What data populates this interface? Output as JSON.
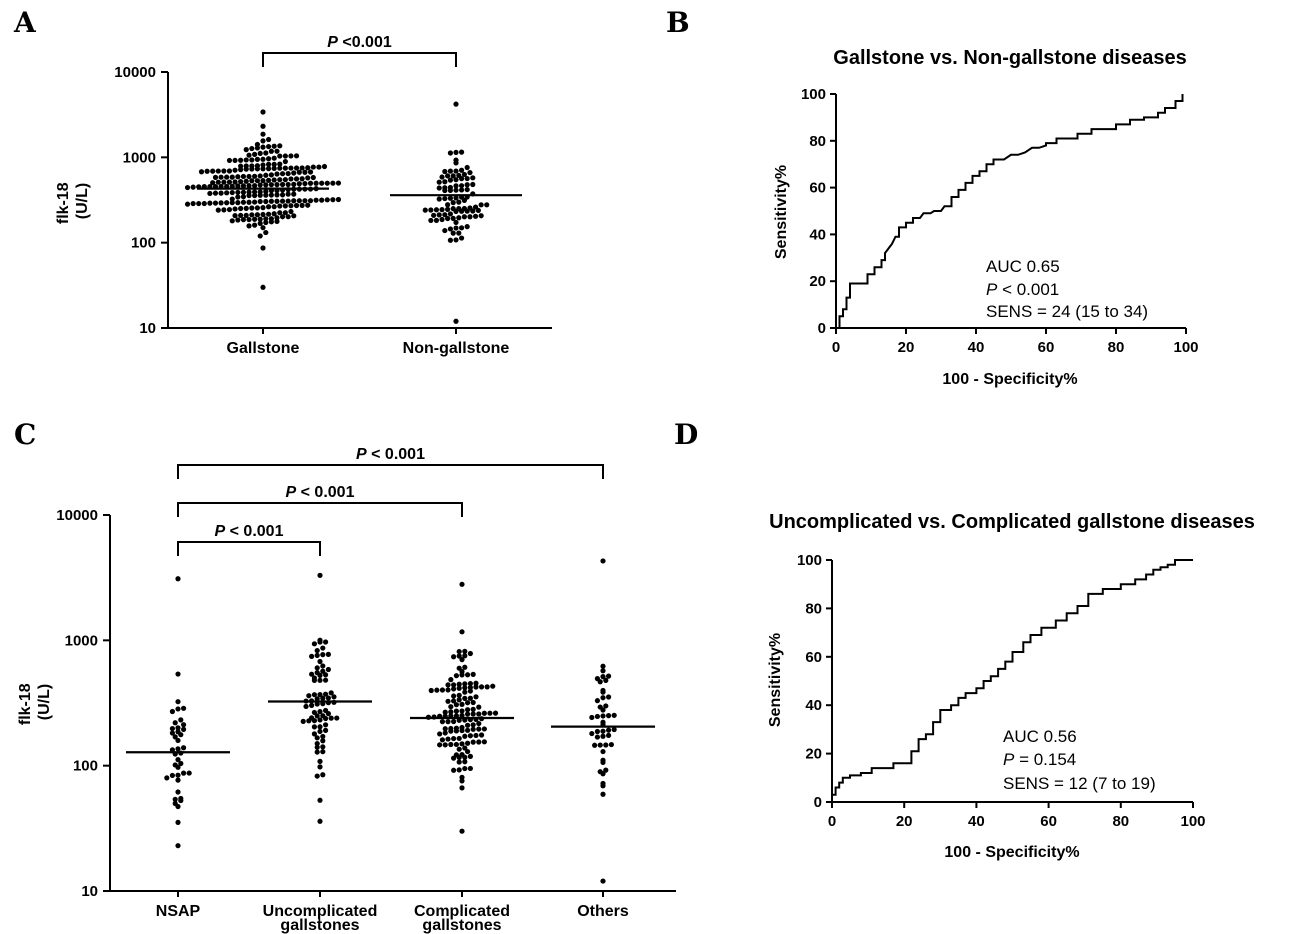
{
  "chart_data": [
    {
      "panel": "A",
      "type": "scatter",
      "ylabel": "flk-18 (U/L)",
      "ylabel_lines": [
        "flk-18",
        "(U/L)"
      ],
      "yscale": "log",
      "ylim": [
        10,
        10000
      ],
      "yticks": [
        "10",
        "100",
        "1000",
        "10000"
      ],
      "categories": [
        "Gallstone",
        "Non-gallstone"
      ],
      "medians": [
        430,
        360
      ],
      "series": [
        {
          "category": "Gallstone",
          "n_points": 240,
          "min": 30,
          "max": 3400
        },
        {
          "category": "Non-gallstone",
          "n_points": 90,
          "min": 12,
          "max": 4200
        }
      ],
      "comparisons": [
        {
          "from": "Gallstone",
          "to": "Non-gallstone",
          "label_p": "P",
          "label_rest": " <0.001"
        }
      ]
    },
    {
      "panel": "B",
      "type": "line",
      "title": "Gallstone vs. Non-gallstone diseases",
      "xlabel": "100 - Specificity%",
      "ylabel": "Sensitivity%",
      "xlim": [
        0,
        100
      ],
      "ylim": [
        0,
        100
      ],
      "xticks": [
        "0",
        "20",
        "40",
        "60",
        "80",
        "100"
      ],
      "yticks": [
        "0",
        "20",
        "40",
        "60",
        "80",
        "100"
      ],
      "x": [
        0,
        1,
        1,
        2,
        2,
        3,
        3,
        4,
        4,
        9,
        9,
        11,
        11,
        13,
        13,
        14,
        14,
        16,
        17,
        18,
        18,
        20,
        20,
        22,
        22,
        24,
        25,
        27,
        28,
        30,
        31,
        33,
        33,
        35,
        35,
        37,
        37,
        39,
        39,
        41,
        41,
        43,
        43,
        45,
        45,
        48,
        50,
        52,
        54,
        56,
        58,
        60,
        60,
        63,
        63,
        69,
        69,
        73,
        73,
        80,
        80,
        84,
        84,
        88,
        88,
        92,
        92,
        94,
        94,
        97,
        97,
        99,
        99
      ],
      "y": [
        0,
        0,
        5,
        5,
        8,
        8,
        13,
        13,
        19,
        19,
        23,
        23,
        26,
        26,
        29,
        29,
        32,
        36,
        39,
        39,
        43,
        43,
        45,
        45,
        47,
        47,
        49,
        49,
        50,
        50,
        52,
        52,
        56,
        56,
        59,
        59,
        62,
        62,
        65,
        65,
        67,
        67,
        70,
        70,
        72,
        72,
        74,
        74,
        75,
        77,
        77,
        78,
        79,
        79,
        81,
        81,
        83,
        83,
        85,
        85,
        87,
        87,
        89,
        89,
        90,
        90,
        92,
        92,
        94,
        94,
        97,
        97,
        100
      ],
      "annotation": {
        "auc": "AUC 0.65",
        "p_italic": "P",
        "p_rest": " < 0.001",
        "sens": "SENS = 24 (15 to 34)"
      }
    },
    {
      "panel": "C",
      "type": "scatter",
      "ylabel": "flk-18 (U/L)",
      "ylabel_lines": [
        "flk-18",
        "(U/L)"
      ],
      "yscale": "log",
      "ylim": [
        10,
        10000
      ],
      "yticks": [
        "10",
        "100",
        "1000",
        "10000"
      ],
      "categories": [
        "NSAP",
        "Uncomplicated gallstones",
        "Complicated gallstones",
        "Others"
      ],
      "category_lines": [
        [
          "NSAP"
        ],
        [
          "Uncomplicated",
          "gallstones"
        ],
        [
          "Complicated",
          "gallstones"
        ],
        [
          "Others"
        ]
      ],
      "medians": [
        128,
        325,
        240,
        205
      ],
      "series": [
        {
          "category": "NSAP",
          "n_points": 40,
          "min": 23,
          "max": 3100
        },
        {
          "category": "Uncomplicated gallstones",
          "n_points": 75,
          "min": 36,
          "max": 3300
        },
        {
          "category": "Complicated gallstones",
          "n_points": 130,
          "min": 30,
          "max": 2800
        },
        {
          "category": "Others",
          "n_points": 45,
          "min": 12,
          "max": 4300
        }
      ],
      "comparisons": [
        {
          "from": "NSAP",
          "to": "Uncomplicated gallstones",
          "label_p": "P",
          "label_rest": " < 0.001"
        },
        {
          "from": "NSAP",
          "to": "Complicated gallstones",
          "label_p": "P",
          "label_rest": " < 0.001"
        },
        {
          "from": "NSAP",
          "to": "Others",
          "label_p": "P",
          "label_rest": " < 0.001"
        }
      ]
    },
    {
      "panel": "D",
      "type": "line",
      "title": "Uncomplicated vs. Complicated gallstone diseases",
      "xlabel": "100 - Specificity%",
      "ylabel": "Sensitivity%",
      "xlim": [
        0,
        100
      ],
      "ylim": [
        0,
        100
      ],
      "xticks": [
        "0",
        "20",
        "40",
        "60",
        "80",
        "100"
      ],
      "yticks": [
        "0",
        "20",
        "40",
        "60",
        "80",
        "100"
      ],
      "x": [
        0,
        0,
        1,
        1,
        2,
        2,
        3,
        3,
        5,
        5,
        8,
        8,
        11,
        11,
        17,
        17,
        22,
        22,
        24,
        24,
        26,
        26,
        28,
        28,
        30,
        30,
        33,
        33,
        35,
        35,
        37,
        37,
        40,
        40,
        42,
        42,
        44,
        44,
        46,
        46,
        48,
        48,
        50,
        50,
        53,
        53,
        55,
        55,
        58,
        58,
        62,
        62,
        65,
        65,
        68,
        68,
        71,
        71,
        75,
        75,
        80,
        80,
        84,
        84,
        87,
        87,
        89,
        89,
        91,
        91,
        93,
        93,
        95,
        95,
        100
      ],
      "y": [
        0,
        3,
        3,
        6,
        6,
        8,
        8,
        10,
        10,
        11,
        11,
        12,
        12,
        14,
        14,
        16,
        16,
        21,
        21,
        26,
        26,
        28,
        28,
        33,
        33,
        38,
        38,
        40,
        40,
        43,
        43,
        45,
        45,
        47,
        47,
        50,
        50,
        52,
        52,
        55,
        55,
        58,
        58,
        62,
        62,
        66,
        66,
        69,
        69,
        72,
        72,
        75,
        75,
        78,
        78,
        81,
        81,
        86,
        86,
        88,
        88,
        90,
        90,
        92,
        92,
        94,
        94,
        96,
        96,
        97,
        97,
        98,
        98,
        100,
        100
      ],
      "annotation": {
        "auc": "AUC 0.56",
        "p_italic": "P",
        "p_rest": " = 0.154",
        "sens": "SENS = 12 (7 to 19)"
      }
    }
  ],
  "panel_letters": [
    "A",
    "B",
    "C",
    "D"
  ]
}
